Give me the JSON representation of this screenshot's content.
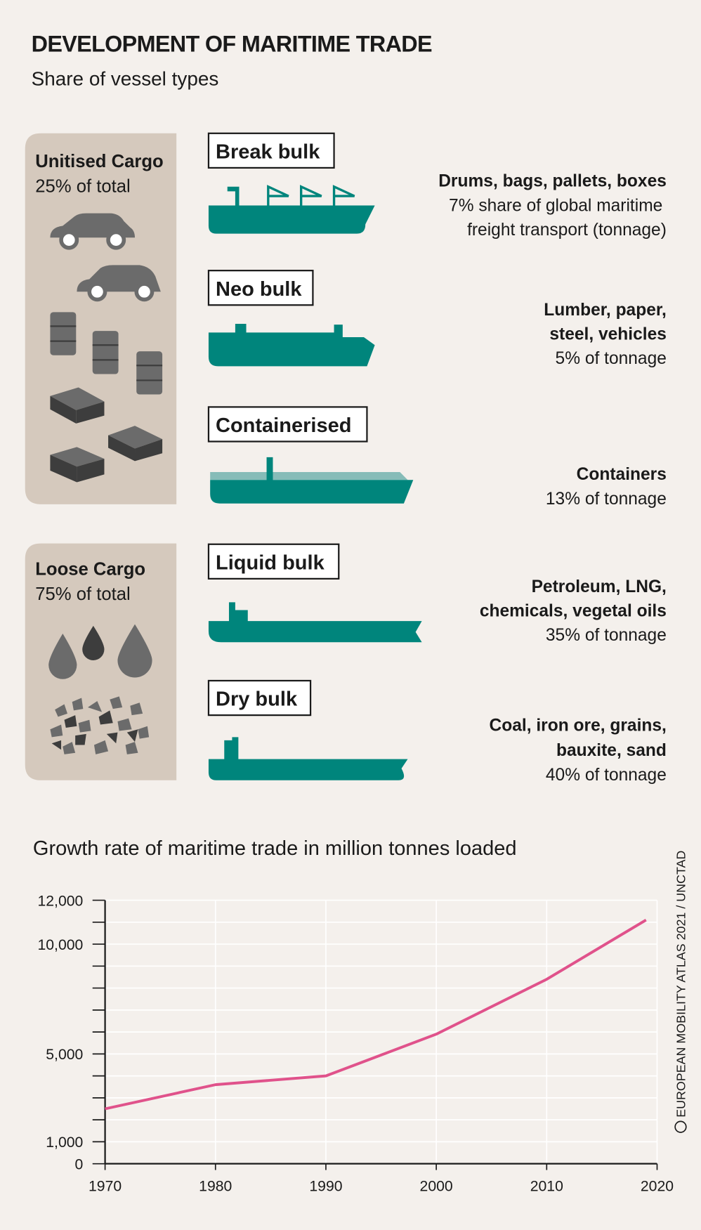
{
  "header": {
    "title": "DEVELOPMENT OF MARITIME TRADE",
    "subtitle": "Share of vessel types"
  },
  "groups": [
    {
      "name": "Unitised Cargo",
      "share": "25% of total"
    },
    {
      "name": "Loose Cargo",
      "share": "75% of total"
    }
  ],
  "vessels": [
    {
      "label": "Break bulk",
      "cargo": [
        "Drums, bags, pallets, boxes"
      ],
      "share": [
        "7% share of global maritime",
        "freight transport (tonnage)"
      ]
    },
    {
      "label": "Neo bulk",
      "cargo": [
        "Lumber, paper,",
        "steel, vehicles"
      ],
      "share": [
        "5% of tonnage"
      ]
    },
    {
      "label": "Containerised",
      "cargo": [
        "Containers"
      ],
      "share": [
        "13% of tonnage"
      ]
    },
    {
      "label": "Liquid bulk",
      "cargo": [
        "Petroleum, LNG,",
        "chemicals, vegetal oils"
      ],
      "share": [
        "35% of tonnage"
      ]
    },
    {
      "label": "Dry bulk",
      "cargo": [
        "Coal, iron ore, grains,",
        "bauxite, sand"
      ],
      "share": [
        "40% of tonnage"
      ]
    }
  ],
  "chart_data": {
    "type": "line",
    "title": "Growth rate of maritime trade in million tonnes loaded",
    "x": [
      1970,
      1980,
      1990,
      2000,
      2010,
      2019
    ],
    "values": [
      2500,
      3600,
      4000,
      5900,
      8400,
      11100
    ],
    "color": "#e0528b",
    "xlim": [
      1970,
      2020
    ],
    "xticks": [
      1970,
      1980,
      1990,
      2000,
      2010,
      2020
    ],
    "ylim": [
      0,
      12000
    ],
    "yticks": [
      0,
      {
        "value": 1000,
        "label": "1,000"
      },
      {
        "value": 5000,
        "label": "5,000"
      },
      {
        "value": 10000,
        "label": "10,000"
      },
      {
        "value": 12000,
        "label": "12,000"
      }
    ],
    "minor_yticks": [
      2000,
      3000,
      4000,
      6000,
      7000,
      8000,
      9000,
      11000
    ],
    "grid": true
  },
  "credit": "EUROPEAN MOBILITY ATLAS 2021 / UNCTAD"
}
